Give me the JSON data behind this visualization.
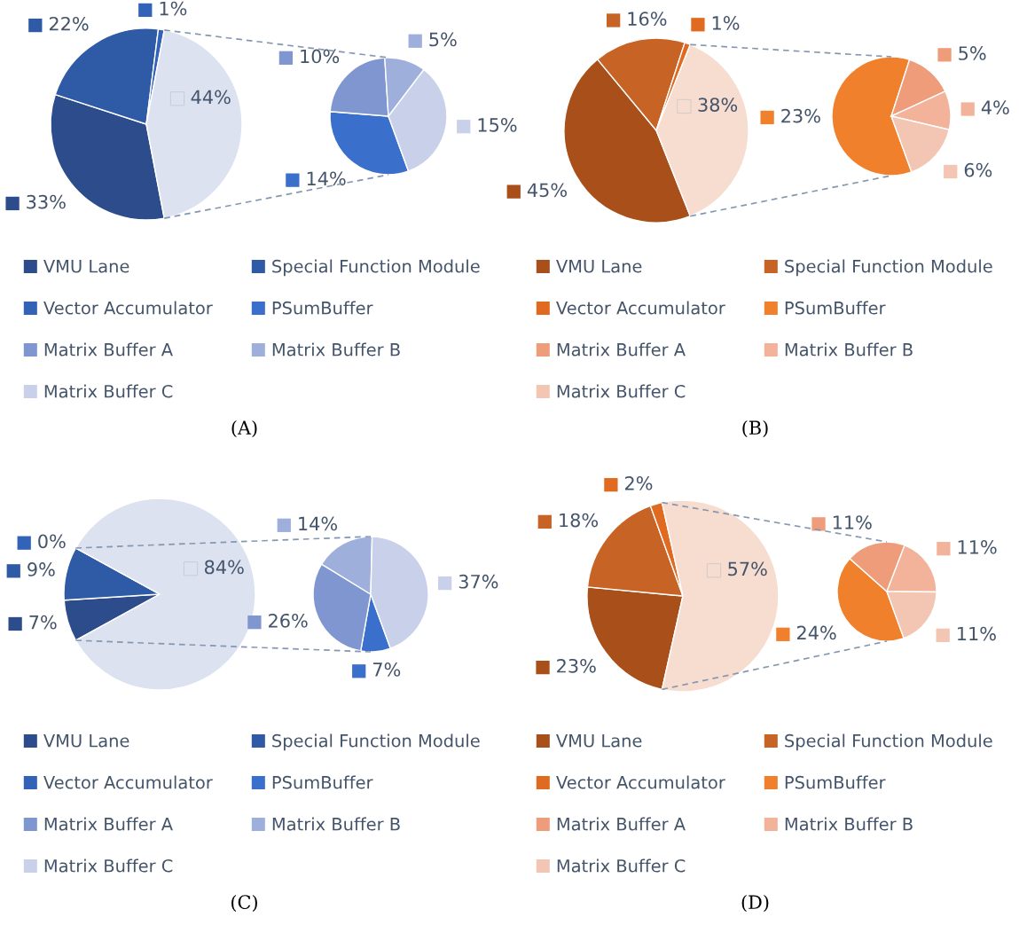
{
  "chart_data": [
    {
      "type": "pie",
      "title": "(A)",
      "legend": "bottom",
      "categories": [
        "VMU Lane",
        "Special Function Module",
        "Vector Accumulator",
        null
      ],
      "values": [
        33,
        22,
        1,
        44
      ],
      "value_labels": [
        "33%",
        "22%",
        "1%",
        "44%"
      ],
      "colors": [
        "#2c4c8c",
        "#2f5aa6",
        "#3263b8",
        "#dde2f0"
      ]
    },
    {
      "type": "pie",
      "legend": "bottom",
      "categories": [
        "PSumBuffer",
        "Matrix Buffer A",
        "Matrix Buffer B",
        "Matrix Buffer C"
      ],
      "values": [
        14,
        10,
        5,
        15
      ],
      "value_labels": [
        "14%",
        "10%",
        "5%",
        "15%"
      ],
      "colors": [
        "#3a6fcc",
        "#7f96d0",
        "#9eafdc",
        "#c9d1ea"
      ]
    },
    {
      "type": "pie",
      "title": "(B)",
      "legend": "bottom",
      "categories": [
        "VMU Lane",
        "Special Function Module",
        "Vector Accumulator",
        null
      ],
      "values": [
        45,
        16,
        1,
        38
      ],
      "value_labels": [
        "45%",
        "16%",
        "1%",
        "38%"
      ],
      "colors": [
        "#a84f1a",
        "#c86326",
        "#e06a20",
        "#f7dcd0"
      ]
    },
    {
      "type": "pie",
      "legend": "bottom",
      "categories": [
        "PSumBuffer",
        "Matrix Buffer A",
        "Matrix Buffer B",
        "Matrix Buffer C"
      ],
      "values": [
        23,
        5,
        4,
        6
      ],
      "value_labels": [
        "23%",
        "5%",
        "4%",
        "6%"
      ],
      "colors": [
        "#f0802c",
        "#ee9c7a",
        "#f2b39a",
        "#f3c5b3"
      ]
    },
    {
      "type": "pie",
      "title": "(C)",
      "legend": "bottom",
      "categories": [
        "VMU Lane",
        "Special Function Module",
        "Vector Accumulator",
        null
      ],
      "values": [
        7,
        9,
        0,
        84
      ],
      "value_labels": [
        "7%",
        "9%",
        "0%",
        "84%"
      ],
      "colors": [
        "#2c4c8c",
        "#2f5aa6",
        "#3263b8",
        "#dde2f0"
      ]
    },
    {
      "type": "pie",
      "legend": "bottom",
      "categories": [
        "PSumBuffer",
        "Matrix Buffer A",
        "Matrix Buffer B",
        "Matrix Buffer C"
      ],
      "values": [
        7,
        26,
        14,
        37
      ],
      "value_labels": [
        "7%",
        "26%",
        "14%",
        "37%"
      ],
      "colors": [
        "#3a6fcc",
        "#7f96d0",
        "#9eafdc",
        "#c9d1ea"
      ]
    },
    {
      "type": "pie",
      "title": "(D)",
      "legend": "bottom",
      "categories": [
        "VMU Lane",
        "Special Function Module",
        "Vector Accumulator",
        null
      ],
      "values": [
        23,
        18,
        2,
        57
      ],
      "value_labels": [
        "23%",
        "18%",
        "2%",
        "57%"
      ],
      "colors": [
        "#a84f1a",
        "#c86326",
        "#e06a20",
        "#f7dcd0"
      ]
    },
    {
      "type": "pie",
      "legend": "bottom",
      "categories": [
        "PSumBuffer",
        "Matrix Buffer A",
        "Matrix Buffer B",
        "Matrix Buffer C"
      ],
      "values": [
        24,
        11,
        11,
        11
      ],
      "value_labels": [
        "24%",
        "11%",
        "11%",
        "11%"
      ],
      "colors": [
        "#f0802c",
        "#ee9c7a",
        "#f2b39a",
        "#f3c5b3"
      ]
    }
  ]
}
